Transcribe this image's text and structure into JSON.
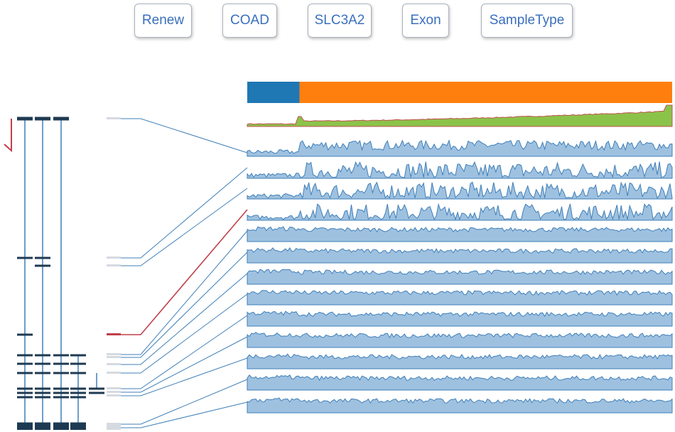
{
  "toolbar": {
    "renew_label": "Renew",
    "cancer_label": "COAD",
    "gene_label": "SLC3A2",
    "view_label": "Exon",
    "sample_label": "SampleType"
  },
  "colors": {
    "button_text": "#3a6fbd",
    "sample_group_a": "#1f77b4",
    "sample_group_b": "#ff7f0e",
    "total_expression_fill": "#8bc34a",
    "total_expression_line": "#c0504d",
    "track_fill": "#9ec1e0",
    "track_stroke": "#3f7fb8",
    "transcript": "#1e3a52",
    "connector": "#3f7fb8",
    "highlight": "#c0404a",
    "exon_marker": "#d5dae0"
  },
  "icons": {
    "strand": "strand-arrow-icon"
  },
  "sample_groups": [
    {
      "name": "",
      "fraction": 0.123
    },
    {
      "name": "",
      "fraction": 0.877
    }
  ],
  "exons": [
    {
      "id": "e1",
      "transcripts": [
        0,
        1,
        2
      ],
      "highlight": false,
      "pattern": "dense"
    },
    {
      "id": "e2",
      "transcripts": [
        0,
        1
      ],
      "highlight": false,
      "pattern": "sparse"
    },
    {
      "id": "e3",
      "transcripts": [
        1
      ],
      "highlight": false,
      "pattern": "sparse"
    },
    {
      "id": "e4",
      "transcripts": [
        0
      ],
      "highlight": true,
      "pattern": "sparse"
    },
    {
      "id": "e5",
      "transcripts": [
        0,
        1,
        2,
        3
      ],
      "highlight": false,
      "pattern": "full"
    },
    {
      "id": "e6",
      "transcripts": [
        0,
        1,
        2,
        3
      ],
      "highlight": false,
      "pattern": "full"
    },
    {
      "id": "e7",
      "transcripts": [
        0,
        1,
        2,
        3
      ],
      "highlight": false,
      "pattern": "full"
    },
    {
      "id": "e8",
      "transcripts": [
        0,
        1,
        2,
        3
      ],
      "highlight": false,
      "pattern": "full"
    },
    {
      "id": "e9",
      "transcripts": [
        0,
        1,
        2,
        3,
        4
      ],
      "highlight": false,
      "pattern": "full"
    },
    {
      "id": "e10",
      "transcripts": [
        0,
        1,
        2,
        3,
        4
      ],
      "highlight": false,
      "pattern": "full"
    },
    {
      "id": "e11",
      "transcripts": [
        0,
        1,
        2,
        3
      ],
      "highlight": false,
      "pattern": "full"
    },
    {
      "id": "e12",
      "transcripts": [
        0,
        1,
        2,
        3
      ],
      "highlight": false,
      "pattern": "full"
    },
    {
      "id": "e13",
      "transcripts": [
        0,
        1,
        2,
        3
      ],
      "highlight": false,
      "pattern": "full"
    }
  ]
}
